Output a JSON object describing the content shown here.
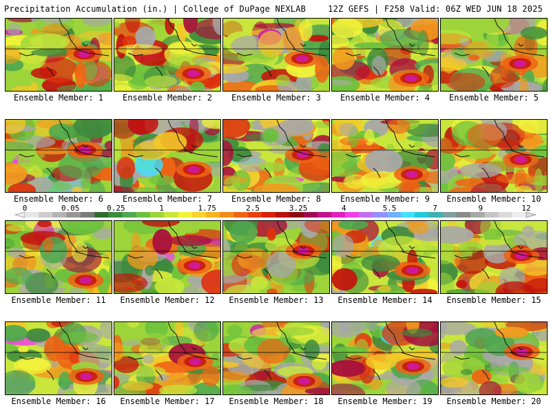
{
  "header": {
    "title": "Precipitation Accumulation (in.) | College of DuPage NEXLAB",
    "run_info": "12Z GEFS | F258 Valid: 06Z WED JUN 18 2025"
  },
  "colorbar": {
    "labels": [
      "0",
      "0.05",
      "0.25",
      "1",
      "1.75",
      "2.5",
      "3.25",
      "4",
      "5.5",
      "7",
      "9",
      "12"
    ],
    "colors": [
      "#e6e6e6",
      "#cccccc",
      "#b3b3b3",
      "#969696",
      "#7a7a7a",
      "#2f6b2f",
      "#3d8a3d",
      "#4fa84f",
      "#6bc13d",
      "#9cd43a",
      "#c8e63c",
      "#f2f23a",
      "#f5d22e",
      "#f5b223",
      "#f28c1a",
      "#ef6414",
      "#e8400f",
      "#d8200c",
      "#b8100e",
      "#8c0a14",
      "#a00a50",
      "#c0128a",
      "#e020c0",
      "#f040e8",
      "#c070f0",
      "#9090f8",
      "#6fb0ff",
      "#40e0ff",
      "#20c8d8",
      "#40b0b0",
      "#7f9f9f",
      "#8a8a8a",
      "#a8a8a8",
      "#c4c4c4",
      "#dadada",
      "#eeeeee"
    ]
  },
  "members": [
    {
      "label": "Ensemble Member: 1"
    },
    {
      "label": "Ensemble Member: 2"
    },
    {
      "label": "Ensemble Member: 3"
    },
    {
      "label": "Ensemble Member: 4"
    },
    {
      "label": "Ensemble Member: 5"
    },
    {
      "label": "Ensemble Member: 6"
    },
    {
      "label": "Ensemble Member: 7"
    },
    {
      "label": "Ensemble Member: 8"
    },
    {
      "label": "Ensemble Member: 9"
    },
    {
      "label": "Ensemble Member: 10"
    },
    {
      "label": "Ensemble Member: 11"
    },
    {
      "label": "Ensemble Member: 12"
    },
    {
      "label": "Ensemble Member: 13"
    },
    {
      "label": "Ensemble Member: 14"
    },
    {
      "label": "Ensemble Member: 15"
    },
    {
      "label": "Ensemble Member: 16"
    },
    {
      "label": "Ensemble Member: 17"
    },
    {
      "label": "Ensemble Member: 18"
    },
    {
      "label": "Ensemble Member: 19"
    },
    {
      "label": "Ensemble Member: 20"
    }
  ]
}
